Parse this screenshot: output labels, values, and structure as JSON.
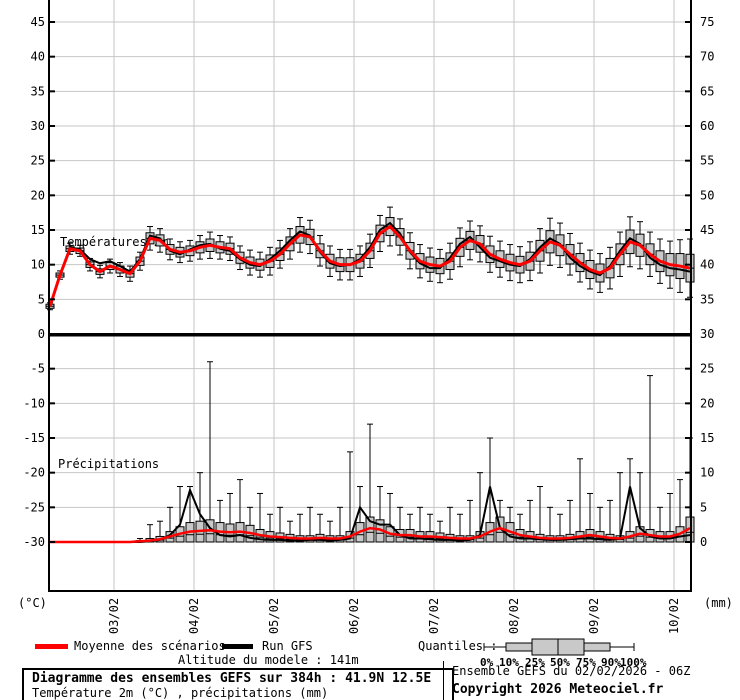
{
  "panels": {
    "temperature_label": "Températures 2m",
    "precipitation_label": "Précipitations"
  },
  "axes": {
    "left_unit": "(°C)",
    "right_unit": "(mm)"
  },
  "footer": {
    "legend": {
      "mean_label": "Moyenne des scénarios",
      "gfs_label": "Run GFS",
      "altitude": "Altitude du modele : 141m"
    },
    "quantiles": {
      "label": "Quantiles :",
      "ticks": [
        "0%",
        "10%",
        "25%",
        "50%",
        "75%",
        "90%",
        "100%"
      ]
    },
    "info_left": {
      "title": "Diagramme des ensembles GEFS sur 384h : 41.9N 12.5E",
      "subtitle": "Température 2m (°C) , précipitations (mm)"
    },
    "info_right": {
      "run": "Ensemble GEFS du 02/02/2026 - 06Z",
      "copyright": "Copyright 2026 Meteociel.fr"
    }
  },
  "colors": {
    "mean": "#ff0000",
    "gfs": "#000000",
    "box_fill": "#c9c9c9",
    "box_stroke": "#000000",
    "grid": "#c6c6c6",
    "axis": "#000000"
  },
  "chart_data": {
    "type": "boxplot+line",
    "title": "Diagramme des ensembles GEFS sur 384h : 41.9N 12.5E",
    "legend_position": "bottom",
    "grid": true,
    "x_axis": {
      "dates": [
        "03/02",
        "04/02",
        "05/02",
        "06/02",
        "07/02",
        "08/02",
        "09/02",
        "10/02"
      ],
      "points_per_day": 8,
      "start": "02/02 06Z"
    },
    "temp_axis": {
      "unit": "°C",
      "ticks": [
        45,
        40,
        35,
        30,
        25,
        20,
        15,
        10,
        5,
        0,
        -5,
        -10,
        -15,
        -20,
        -25,
        -30
      ],
      "ylim": [
        -37,
        48
      ]
    },
    "precip_axis": {
      "unit": "mm",
      "ticks": [
        75,
        70,
        65,
        60,
        55,
        50,
        45,
        40,
        35,
        30,
        25,
        20,
        15,
        10,
        5,
        0
      ],
      "ylim": [
        0,
        80
      ]
    },
    "temperature": {
      "mean": [
        4.0,
        8.5,
        12.3,
        12.0,
        10.0,
        9.0,
        9.8,
        9.3,
        8.7,
        10.5,
        13.8,
        13.5,
        12.2,
        11.8,
        12.0,
        12.5,
        12.8,
        12.5,
        12.3,
        11.0,
        10.3,
        10.0,
        10.5,
        11.5,
        13.0,
        14.3,
        14.0,
        12.0,
        10.5,
        10.0,
        10.0,
        10.5,
        12.0,
        14.5,
        15.5,
        14.0,
        12.0,
        10.5,
        10.0,
        9.8,
        10.5,
        12.5,
        13.5,
        13.0,
        11.5,
        10.8,
        10.3,
        10.0,
        10.5,
        12.0,
        13.3,
        12.8,
        11.5,
        10.3,
        9.3,
        8.8,
        9.5,
        11.5,
        13.3,
        12.8,
        11.5,
        10.5,
        10.0,
        9.8,
        9.5
      ],
      "gfs": [
        4.0,
        8.5,
        12.5,
        12.2,
        10.8,
        10.2,
        10.5,
        9.8,
        9.0,
        10.8,
        14.2,
        13.8,
        12.0,
        11.5,
        12.2,
        12.8,
        13.0,
        12.3,
        12.0,
        10.8,
        10.0,
        9.8,
        10.8,
        12.0,
        13.5,
        14.8,
        14.2,
        11.8,
        10.2,
        9.8,
        10.0,
        10.8,
        12.5,
        15.0,
        16.0,
        14.5,
        11.8,
        10.2,
        9.5,
        9.5,
        11.0,
        13.0,
        14.0,
        12.5,
        11.0,
        10.5,
        10.0,
        9.8,
        10.8,
        12.5,
        13.8,
        13.0,
        11.0,
        9.8,
        9.0,
        8.5,
        9.8,
        12.0,
        13.8,
        13.0,
        11.0,
        10.0,
        9.5,
        9.3,
        9.0
      ],
      "box_half": [
        0.3,
        0.3,
        0.4,
        0.4,
        0.4,
        0.4,
        0.5,
        0.5,
        0.5,
        0.6,
        0.8,
        0.8,
        0.7,
        0.7,
        0.7,
        0.8,
        0.9,
        0.8,
        0.8,
        0.8,
        0.8,
        0.8,
        0.9,
        0.9,
        1.0,
        1.2,
        1.1,
        1.0,
        1.0,
        1.0,
        1.0,
        1.0,
        1.1,
        1.2,
        1.3,
        1.2,
        1.2,
        1.1,
        1.1,
        1.1,
        1.2,
        1.3,
        1.3,
        1.2,
        1.2,
        1.2,
        1.2,
        1.2,
        1.3,
        1.5,
        1.6,
        1.5,
        1.4,
        1.3,
        1.3,
        1.3,
        1.4,
        1.5,
        1.7,
        1.6,
        1.5,
        1.5,
        1.6,
        1.8,
        2.0
      ],
      "whisker_half": [
        0.5,
        0.6,
        0.8,
        0.8,
        0.9,
        0.9,
        1.0,
        1.0,
        1.1,
        1.3,
        1.7,
        1.7,
        1.5,
        1.5,
        1.5,
        1.7,
        1.9,
        1.7,
        1.7,
        1.7,
        1.8,
        1.8,
        2.0,
        2.0,
        2.2,
        2.5,
        2.4,
        2.2,
        2.2,
        2.2,
        2.2,
        2.2,
        2.4,
        2.6,
        2.8,
        2.6,
        2.6,
        2.4,
        2.4,
        2.4,
        2.6,
        2.8,
        2.8,
        2.6,
        2.6,
        2.6,
        2.6,
        2.6,
        2.8,
        3.2,
        3.4,
        3.2,
        3.0,
        2.8,
        2.8,
        2.8,
        3.0,
        3.2,
        3.6,
        3.4,
        3.2,
        3.2,
        3.4,
        3.8,
        4.2
      ]
    },
    "precipitation": {
      "mean": [
        0,
        0,
        0,
        0,
        0,
        0,
        0,
        0,
        0,
        0.1,
        0.2,
        0.4,
        0.8,
        1.2,
        1.5,
        1.6,
        1.7,
        1.5,
        1.4,
        1.5,
        1.3,
        1.0,
        0.8,
        0.7,
        0.6,
        0.5,
        0.5,
        0.6,
        0.5,
        0.5,
        0.8,
        1.5,
        2.0,
        1.8,
        1.2,
        1.0,
        1.0,
        0.8,
        0.8,
        0.7,
        0.6,
        0.5,
        0.5,
        0.8,
        1.5,
        2.0,
        1.5,
        1.0,
        0.8,
        0.6,
        0.5,
        0.5,
        0.6,
        0.8,
        1.0,
        0.8,
        0.6,
        0.5,
        0.8,
        1.2,
        1.0,
        0.8,
        0.8,
        1.2,
        2.0
      ],
      "gfs": [
        0,
        0,
        0,
        0,
        0,
        0,
        0,
        0,
        0,
        0,
        0.1,
        0.3,
        1.0,
        2.5,
        7.5,
        4.0,
        2.0,
        1.0,
        0.8,
        1.0,
        0.6,
        0.4,
        0.3,
        0.3,
        0.2,
        0.2,
        0.3,
        0.3,
        0.2,
        0.3,
        0.5,
        5.0,
        3.0,
        2.5,
        2.5,
        1.0,
        0.5,
        0.5,
        0.4,
        0.3,
        0.3,
        0.2,
        0.3,
        1.0,
        8.0,
        2.0,
        0.8,
        0.5,
        0.5,
        0.4,
        0.3,
        0.3,
        0.4,
        0.5,
        0.5,
        0.4,
        0.3,
        0.5,
        8.0,
        2.0,
        0.8,
        0.5,
        0.5,
        0.8,
        1.0
      ],
      "q75": [
        0,
        0,
        0,
        0,
        0,
        0,
        0,
        0,
        0,
        0.2,
        0.5,
        0.8,
        1.5,
        2.2,
        2.8,
        3.0,
        3.2,
        2.8,
        2.6,
        2.8,
        2.4,
        1.8,
        1.5,
        1.3,
        1.1,
        0.9,
        0.9,
        1.1,
        0.9,
        0.9,
        1.5,
        2.8,
        3.6,
        3.2,
        2.2,
        1.8,
        1.8,
        1.5,
        1.5,
        1.3,
        1.1,
        0.9,
        0.9,
        1.5,
        2.8,
        3.6,
        2.8,
        1.8,
        1.5,
        1.1,
        0.9,
        0.9,
        1.1,
        1.5,
        1.8,
        1.5,
        1.1,
        0.9,
        1.5,
        2.2,
        1.8,
        1.5,
        1.5,
        2.2,
        3.6
      ],
      "whisker_hi": [
        0,
        0,
        0,
        0,
        0,
        0,
        0,
        0,
        0,
        0.5,
        2.5,
        3,
        5,
        8,
        8,
        10,
        26,
        6,
        7,
        9,
        5,
        7,
        4,
        5,
        3,
        4,
        5,
        4,
        3,
        5,
        13,
        8,
        17,
        8,
        7,
        5,
        4,
        5,
        4,
        3,
        5,
        4,
        6,
        10,
        15,
        6,
        5,
        4,
        6,
        8,
        5,
        4,
        6,
        12,
        7,
        5,
        6,
        10,
        12,
        10,
        24,
        5,
        7,
        9,
        15
      ]
    }
  }
}
